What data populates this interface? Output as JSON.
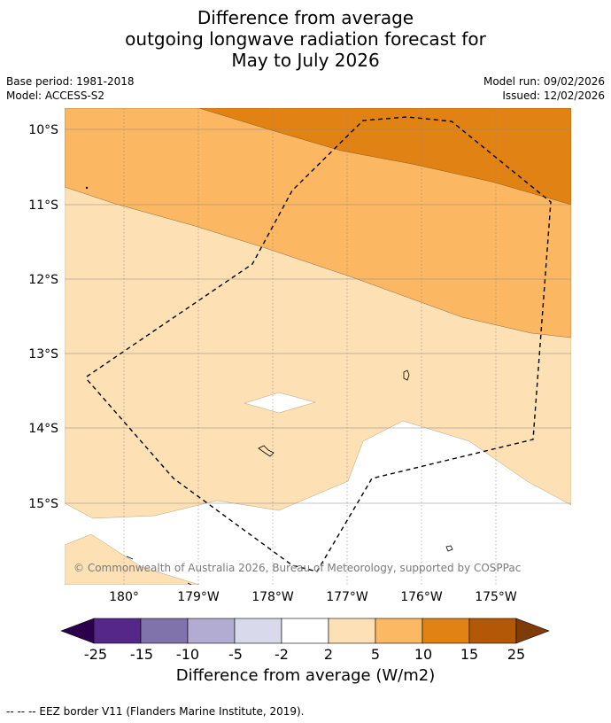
{
  "title": {
    "line1": "Difference from average",
    "line2": "outgoing longwave radiation forecast for",
    "line3": "May to July 2026"
  },
  "meta": {
    "base_period": "Base period: 1981-2018",
    "model": "Model: ACCESS-S2",
    "model_run": "Model run: 09/02/2026",
    "issued": "Issued: 12/02/2026"
  },
  "map": {
    "lat_labels": [
      "10°S",
      "11°S",
      "12°S",
      "13°S",
      "14°S",
      "15°S"
    ],
    "lon_labels": [
      "180°",
      "179°W",
      "178°W",
      "177°W",
      "176°W",
      "175°W"
    ],
    "copyright": "© Commonwealth of Australia 2026, Bureau of Meteorology, supported by COSPPac",
    "colors": {
      "below_2": "#ffffff",
      "2_to_5": "#fde0b4",
      "5_to_10": "#fbb762",
      "10_to_15": "#e08214",
      "eez": "#000000"
    }
  },
  "colorbar": {
    "labels": [
      "-25",
      "-15",
      "-10",
      "-5",
      "-2",
      "2",
      "5",
      "10",
      "15",
      "25"
    ],
    "colors": [
      "#2d004b",
      "#542788",
      "#8073ac",
      "#b2abd2",
      "#d8daeb",
      "#ffffff",
      "#fee0b6",
      "#fdb863",
      "#e08214",
      "#b35806",
      "#7f3b08"
    ],
    "title": "Difference from average (W/m2)"
  },
  "footer": "--  --  -- EEZ border V11 (Flanders Marine Institute, 2019)."
}
